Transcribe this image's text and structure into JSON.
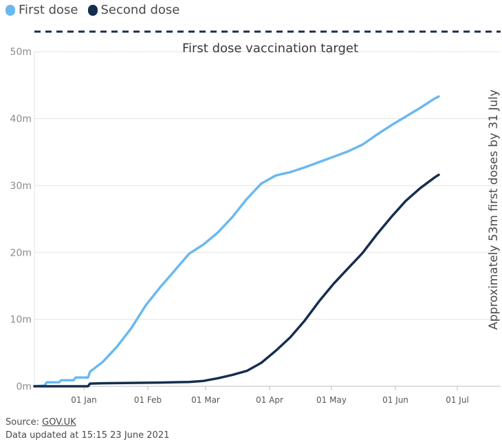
{
  "legend": {
    "first_label": "First dose",
    "second_label": "Second dose",
    "first_color": "#6bb8f0",
    "second_color": "#162d4f"
  },
  "annotations": {
    "target_label": "First dose vaccination target",
    "side_label": "Approximately 53m first doses by 31 July"
  },
  "footer": {
    "source_prefix": "Source: ",
    "source_link": "GOV.UK",
    "updated": "Data updated at 15:15 23 June 2021"
  },
  "chart_data": {
    "type": "line",
    "title": "",
    "xlabel": "",
    "ylabel": "",
    "x_range": [
      "2020-12-08",
      "2021-07-22"
    ],
    "ylim": [
      0,
      53
    ],
    "y_ticks": [
      0,
      10,
      20,
      30,
      40,
      50
    ],
    "y_tick_labels": [
      "0m",
      "10m",
      "20m",
      "30m",
      "40m",
      "50m"
    ],
    "x_ticks": [
      "2021-01-01",
      "2021-02-01",
      "2021-03-01",
      "2021-04-01",
      "2021-05-01",
      "2021-06-01",
      "2021-07-01"
    ],
    "x_tick_labels": [
      "01 Jan",
      "01 Feb",
      "01 Mar",
      "01 Apr",
      "01 May",
      "01 Jun",
      "01 Jul"
    ],
    "grid": true,
    "legend_position": "top-left",
    "reference_line": {
      "value": 53,
      "style": "dashed",
      "color": "#162d4f"
    },
    "series": [
      {
        "name": "First dose",
        "color": "#6bb8f0",
        "points": [
          [
            "2020-12-08",
            0.0
          ],
          [
            "2020-12-13",
            0.1
          ],
          [
            "2020-12-14",
            0.6
          ],
          [
            "2020-12-20",
            0.6
          ],
          [
            "2020-12-21",
            0.9
          ],
          [
            "2020-12-27",
            0.9
          ],
          [
            "2020-12-28",
            1.3
          ],
          [
            "2021-01-03",
            1.3
          ],
          [
            "2021-01-04",
            2.2
          ],
          [
            "2021-01-10",
            3.6
          ],
          [
            "2021-01-17",
            5.9
          ],
          [
            "2021-01-24",
            8.7
          ],
          [
            "2021-01-31",
            12.1
          ],
          [
            "2021-02-07",
            14.8
          ],
          [
            "2021-02-14",
            17.3
          ],
          [
            "2021-02-21",
            19.8
          ],
          [
            "2021-02-28",
            21.2
          ],
          [
            "2021-03-07",
            23.0
          ],
          [
            "2021-03-14",
            25.3
          ],
          [
            "2021-03-21",
            28.0
          ],
          [
            "2021-03-28",
            30.3
          ],
          [
            "2021-04-04",
            31.5
          ],
          [
            "2021-04-11",
            32.0
          ],
          [
            "2021-04-18",
            32.7
          ],
          [
            "2021-04-25",
            33.5
          ],
          [
            "2021-05-02",
            34.3
          ],
          [
            "2021-05-09",
            35.1
          ],
          [
            "2021-05-16",
            36.1
          ],
          [
            "2021-05-23",
            37.6
          ],
          [
            "2021-05-30",
            39.0
          ],
          [
            "2021-06-06",
            40.3
          ],
          [
            "2021-06-13",
            41.6
          ],
          [
            "2021-06-20",
            43.0
          ],
          [
            "2021-06-22",
            43.3
          ]
        ]
      },
      {
        "name": "Second dose",
        "color": "#162d4f",
        "points": [
          [
            "2020-12-08",
            0.0
          ],
          [
            "2021-01-03",
            0.0
          ],
          [
            "2021-01-04",
            0.4
          ],
          [
            "2021-01-10",
            0.45
          ],
          [
            "2021-01-24",
            0.5
          ],
          [
            "2021-02-07",
            0.55
          ],
          [
            "2021-02-21",
            0.65
          ],
          [
            "2021-02-28",
            0.8
          ],
          [
            "2021-03-07",
            1.2
          ],
          [
            "2021-03-14",
            1.7
          ],
          [
            "2021-03-21",
            2.3
          ],
          [
            "2021-03-28",
            3.5
          ],
          [
            "2021-04-04",
            5.3
          ],
          [
            "2021-04-11",
            7.3
          ],
          [
            "2021-04-18",
            9.8
          ],
          [
            "2021-04-25",
            12.7
          ],
          [
            "2021-05-02",
            15.3
          ],
          [
            "2021-05-09",
            17.6
          ],
          [
            "2021-05-16",
            19.9
          ],
          [
            "2021-05-23",
            22.7
          ],
          [
            "2021-05-30",
            25.3
          ],
          [
            "2021-06-06",
            27.7
          ],
          [
            "2021-06-13",
            29.6
          ],
          [
            "2021-06-20",
            31.2
          ],
          [
            "2021-06-22",
            31.6
          ]
        ]
      }
    ]
  }
}
